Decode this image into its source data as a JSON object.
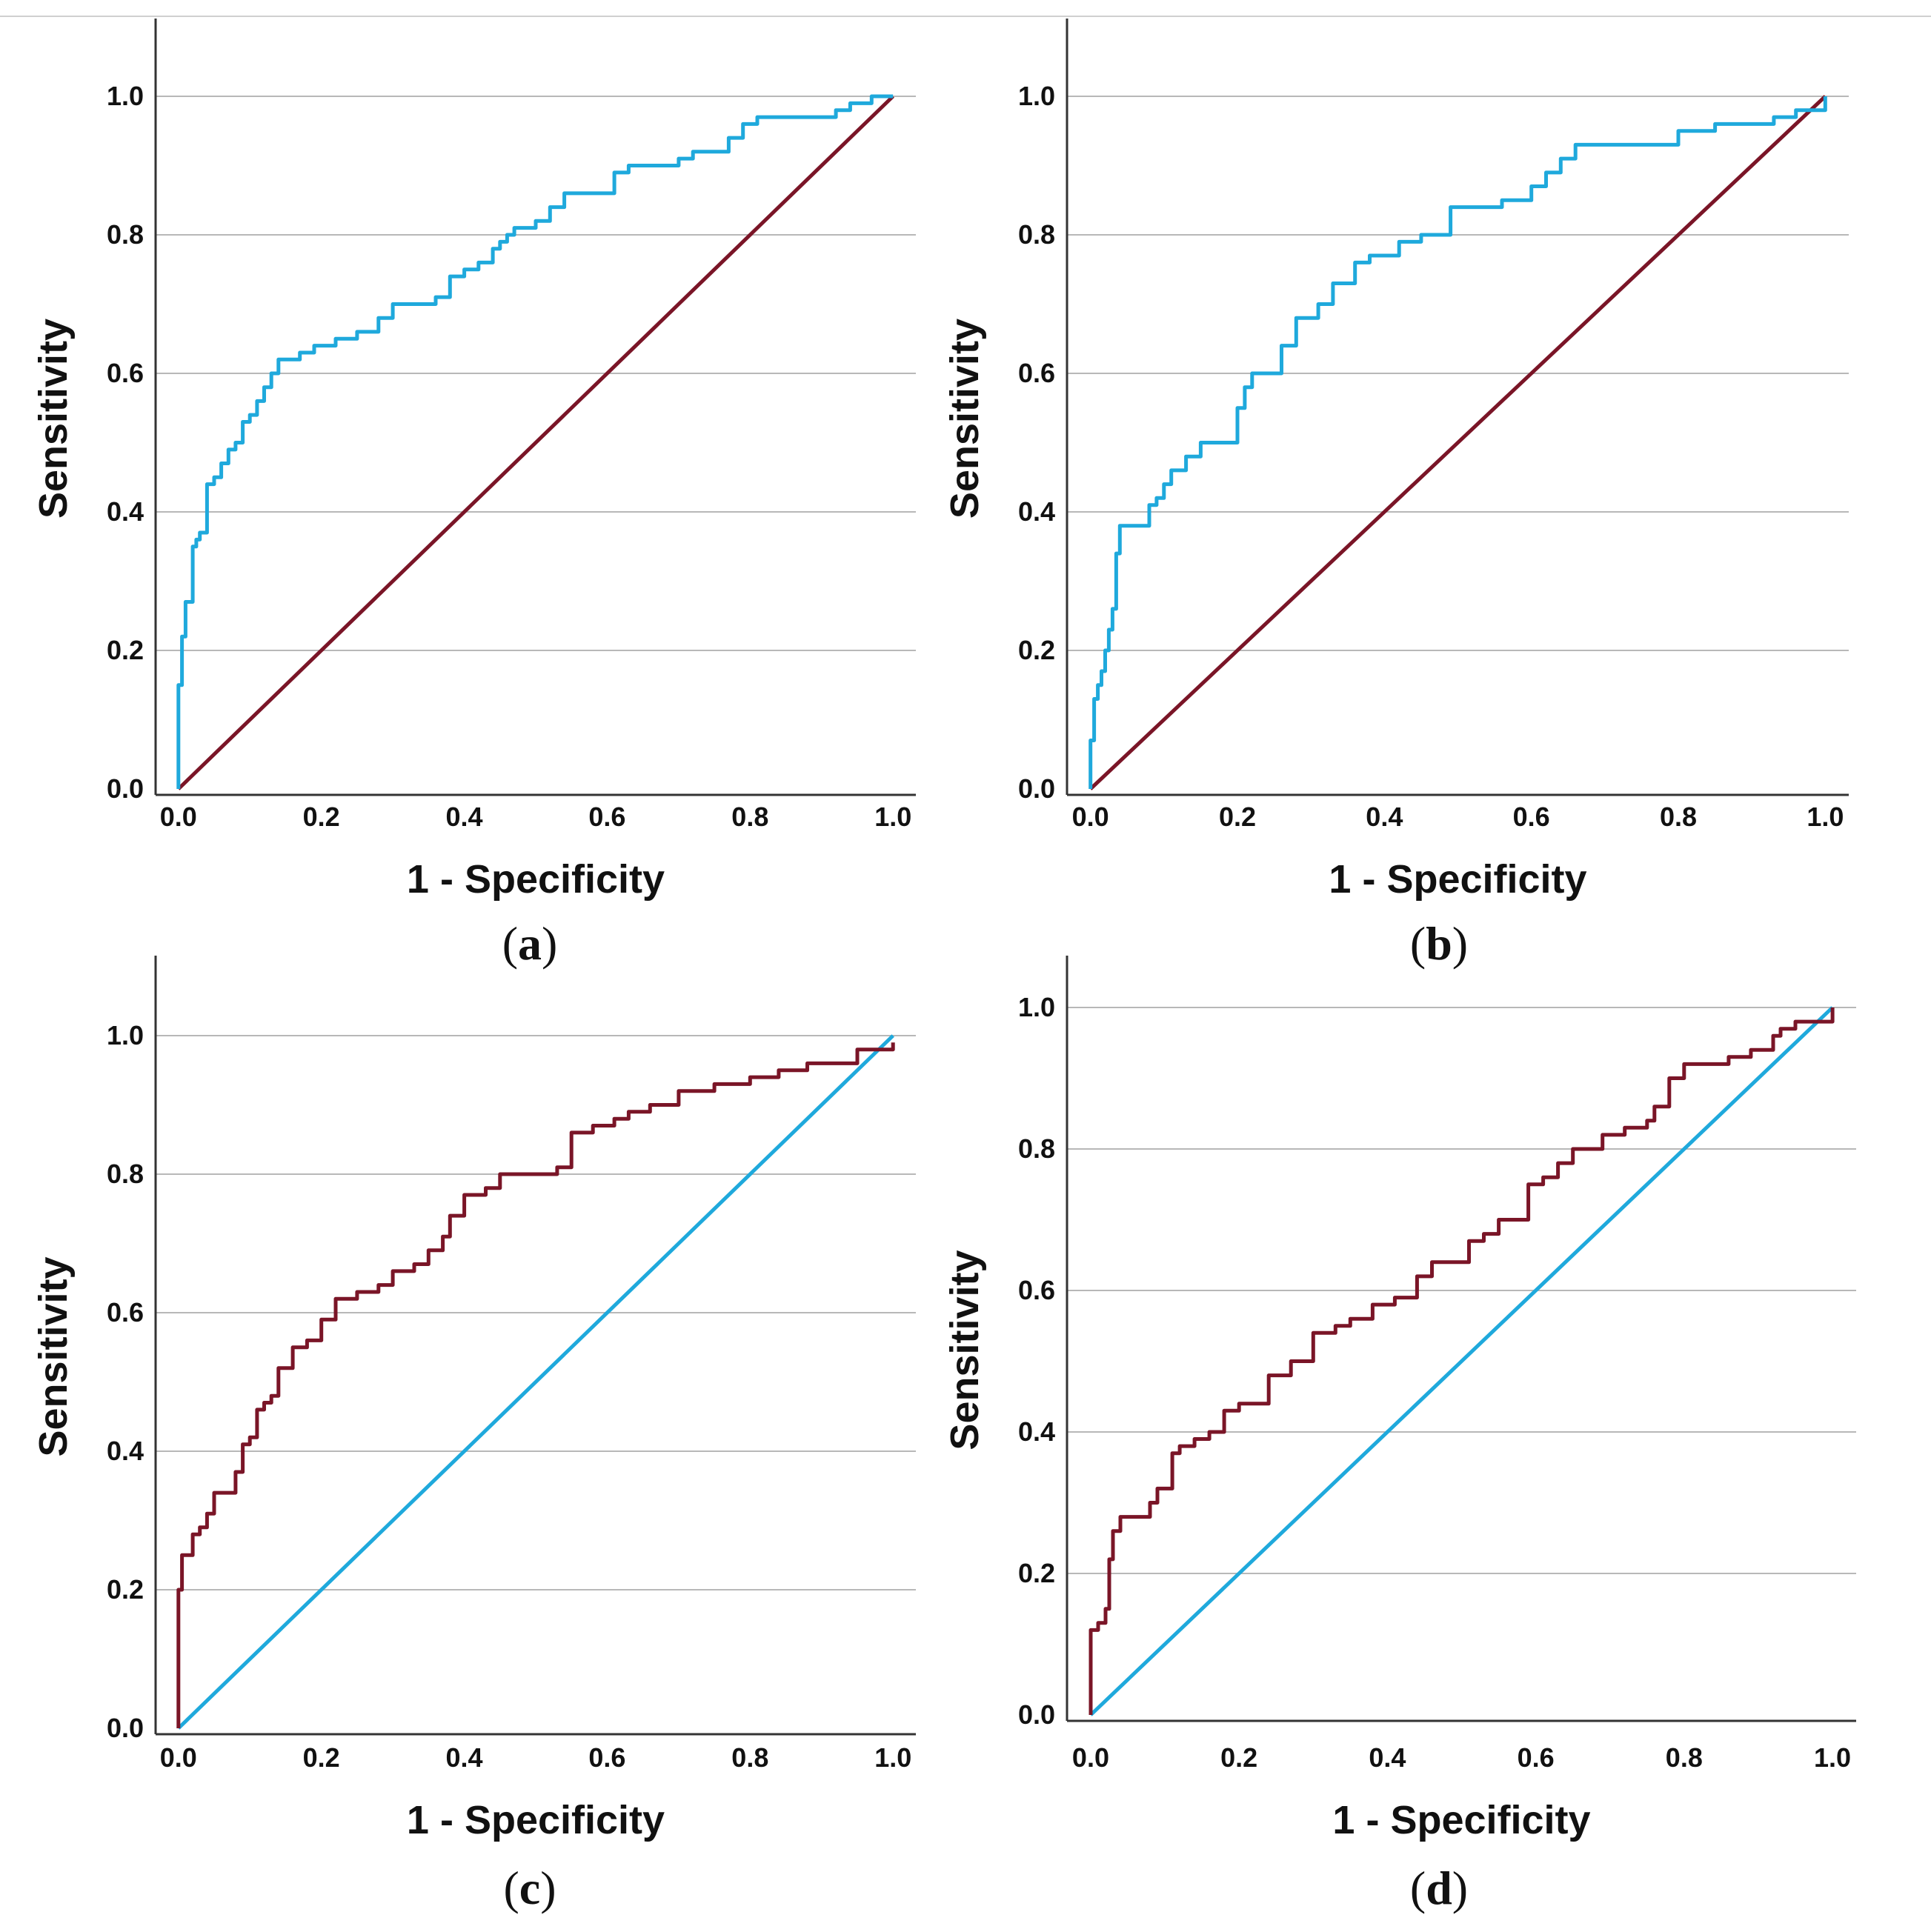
{
  "chart_data": [
    {
      "panel_label": "a",
      "type": "line",
      "xlabel": "1 - Specificity",
      "ylabel": "Sensitivity",
      "xlim": [
        0,
        1
      ],
      "ylim": [
        0,
        1.1
      ],
      "x_ticks": [
        0.0,
        0.2,
        0.4,
        0.6,
        0.8,
        1.0
      ],
      "y_ticks": [
        0.0,
        0.2,
        0.4,
        0.6,
        0.8,
        1.0
      ],
      "x_tick_labels": [
        "0.0",
        "0.2",
        "0.4",
        "0.6",
        "0.8",
        "1.0"
      ],
      "y_tick_labels": [
        "0.0",
        "0.2",
        "0.4",
        "0.6",
        "0.8",
        "1.0"
      ],
      "grid": "horizontal",
      "series": [
        {
          "role": "roc-curve",
          "color": "#1fa9dc",
          "x": [
            0.0,
            0.0,
            0.005,
            0.005,
            0.01,
            0.01,
            0.02,
            0.02,
            0.025,
            0.03,
            0.04,
            0.04,
            0.05,
            0.06,
            0.07,
            0.08,
            0.09,
            0.1,
            0.11,
            0.12,
            0.13,
            0.14,
            0.15,
            0.17,
            0.19,
            0.22,
            0.25,
            0.28,
            0.3,
            0.36,
            0.38,
            0.4,
            0.42,
            0.44,
            0.45,
            0.46,
            0.47,
            0.5,
            0.52,
            0.54,
            0.6,
            0.61,
            0.63,
            0.66,
            0.7,
            0.72,
            0.76,
            0.77,
            0.79,
            0.81,
            0.85,
            0.91,
            0.92,
            0.94,
            0.97,
            1.0
          ],
          "y": [
            0.0,
            0.15,
            0.15,
            0.22,
            0.23,
            0.27,
            0.33,
            0.35,
            0.36,
            0.37,
            0.38,
            0.44,
            0.45,
            0.47,
            0.49,
            0.5,
            0.53,
            0.54,
            0.56,
            0.58,
            0.6,
            0.62,
            0.62,
            0.63,
            0.64,
            0.65,
            0.66,
            0.68,
            0.7,
            0.71,
            0.74,
            0.75,
            0.76,
            0.78,
            0.79,
            0.8,
            0.81,
            0.82,
            0.84,
            0.86,
            0.86,
            0.89,
            0.9,
            0.9,
            0.91,
            0.92,
            0.92,
            0.94,
            0.96,
            0.97,
            0.97,
            0.97,
            0.98,
            0.99,
            1.0,
            1.0
          ]
        },
        {
          "role": "reference-line",
          "color": "#7a1527",
          "x": [
            0.0,
            1.0
          ],
          "y": [
            0.0,
            1.0
          ]
        }
      ]
    },
    {
      "panel_label": "b",
      "type": "line",
      "xlabel": "1 - Specificity",
      "ylabel": "Sensitivity",
      "xlim": [
        0,
        1
      ],
      "ylim": [
        0,
        1.1
      ],
      "x_ticks": [
        0.0,
        0.2,
        0.4,
        0.6,
        0.8,
        1.0
      ],
      "y_ticks": [
        0.0,
        0.2,
        0.4,
        0.6,
        0.8,
        1.0
      ],
      "x_tick_labels": [
        "0.0",
        "0.2",
        "0.4",
        "0.6",
        "0.8",
        "1.0"
      ],
      "y_tick_labels": [
        "0.0",
        "0.2",
        "0.4",
        "0.6",
        "0.8",
        "1.0"
      ],
      "grid": "horizontal",
      "series": [
        {
          "role": "roc-curve",
          "color": "#1fa9dc",
          "x": [
            0.0,
            0.0,
            0.005,
            0.005,
            0.01,
            0.015,
            0.02,
            0.025,
            0.03,
            0.035,
            0.04,
            0.045,
            0.05,
            0.08,
            0.09,
            0.1,
            0.11,
            0.13,
            0.15,
            0.17,
            0.2,
            0.21,
            0.22,
            0.23,
            0.26,
            0.28,
            0.29,
            0.31,
            0.33,
            0.36,
            0.38,
            0.42,
            0.45,
            0.49,
            0.51,
            0.56,
            0.6,
            0.62,
            0.64,
            0.66,
            0.75,
            0.8,
            0.85,
            0.93,
            0.96,
            1.0
          ],
          "y": [
            0.0,
            0.07,
            0.07,
            0.13,
            0.15,
            0.17,
            0.2,
            0.23,
            0.26,
            0.34,
            0.38,
            0.38,
            0.38,
            0.41,
            0.42,
            0.44,
            0.46,
            0.48,
            0.5,
            0.5,
            0.55,
            0.58,
            0.6,
            0.6,
            0.64,
            0.68,
            0.68,
            0.7,
            0.73,
            0.76,
            0.77,
            0.79,
            0.8,
            0.84,
            0.84,
            0.85,
            0.87,
            0.89,
            0.91,
            0.93,
            0.93,
            0.95,
            0.96,
            0.97,
            0.98,
            1.0
          ]
        },
        {
          "role": "reference-line",
          "color": "#7a1527",
          "x": [
            0.0,
            1.0
          ],
          "y": [
            0.0,
            1.0
          ]
        }
      ]
    },
    {
      "panel_label": "c",
      "type": "line",
      "xlabel": "1 - Specificity",
      "ylabel": "Sensitivity",
      "xlim": [
        0,
        1
      ],
      "ylim": [
        0,
        1.1
      ],
      "x_ticks": [
        0.0,
        0.2,
        0.4,
        0.6,
        0.8,
        1.0
      ],
      "y_ticks": [
        0.0,
        0.2,
        0.4,
        0.6,
        0.8,
        1.0
      ],
      "x_tick_labels": [
        "0.0",
        "0.2",
        "0.4",
        "0.6",
        "0.8",
        "1.0"
      ],
      "y_tick_labels": [
        "0.0",
        "0.2",
        "0.4",
        "0.6",
        "0.8",
        "1.0"
      ],
      "grid": "horizontal",
      "series": [
        {
          "role": "roc-curve",
          "color": "#7a1527",
          "x": [
            0.0,
            0.0,
            0.005,
            0.01,
            0.02,
            0.03,
            0.04,
            0.05,
            0.07,
            0.08,
            0.09,
            0.1,
            0.11,
            0.12,
            0.13,
            0.14,
            0.16,
            0.18,
            0.2,
            0.22,
            0.25,
            0.28,
            0.3,
            0.33,
            0.35,
            0.37,
            0.38,
            0.4,
            0.43,
            0.45,
            0.5,
            0.53,
            0.55,
            0.58,
            0.61,
            0.63,
            0.66,
            0.7,
            0.75,
            0.8,
            0.84,
            0.88,
            0.95,
            1.0
          ],
          "y": [
            0.0,
            0.2,
            0.25,
            0.25,
            0.28,
            0.29,
            0.31,
            0.34,
            0.34,
            0.37,
            0.41,
            0.42,
            0.46,
            0.47,
            0.48,
            0.52,
            0.55,
            0.56,
            0.59,
            0.62,
            0.63,
            0.64,
            0.66,
            0.67,
            0.69,
            0.71,
            0.74,
            0.77,
            0.78,
            0.8,
            0.8,
            0.81,
            0.86,
            0.87,
            0.88,
            0.89,
            0.9,
            0.92,
            0.93,
            0.94,
            0.95,
            0.96,
            0.98,
            0.99
          ]
        },
        {
          "role": "reference-line",
          "color": "#1fa9dc",
          "x": [
            0.0,
            1.0
          ],
          "y": [
            0.0,
            1.0
          ]
        }
      ]
    },
    {
      "panel_label": "d",
      "type": "line",
      "xlabel": "1 - Specificity",
      "ylabel": "Sensitivity",
      "xlim": [
        0,
        1
      ],
      "ylim": [
        0,
        1.1
      ],
      "x_ticks": [
        0.0,
        0.2,
        0.4,
        0.6,
        0.8,
        1.0
      ],
      "y_ticks": [
        0.0,
        0.2,
        0.4,
        0.6,
        0.8,
        1.0
      ],
      "x_tick_labels": [
        "0.0",
        "0.2",
        "0.4",
        "0.6",
        "0.8",
        "1.0"
      ],
      "y_tick_labels": [
        "0.0",
        "0.2",
        "0.4",
        "0.6",
        "0.8",
        "1.0"
      ],
      "grid": "horizontal",
      "series": [
        {
          "role": "roc-curve",
          "color": "#7a1527",
          "x": [
            0.0,
            0.0,
            0.01,
            0.02,
            0.025,
            0.03,
            0.04,
            0.05,
            0.08,
            0.09,
            0.11,
            0.12,
            0.14,
            0.16,
            0.18,
            0.2,
            0.24,
            0.27,
            0.3,
            0.33,
            0.35,
            0.38,
            0.41,
            0.44,
            0.46,
            0.51,
            0.53,
            0.55,
            0.59,
            0.61,
            0.63,
            0.65,
            0.69,
            0.72,
            0.75,
            0.76,
            0.78,
            0.8,
            0.86,
            0.89,
            0.92,
            0.93,
            0.95,
            1.0
          ],
          "y": [
            0.0,
            0.12,
            0.13,
            0.15,
            0.22,
            0.26,
            0.28,
            0.28,
            0.3,
            0.32,
            0.37,
            0.38,
            0.39,
            0.4,
            0.43,
            0.44,
            0.48,
            0.5,
            0.54,
            0.55,
            0.56,
            0.58,
            0.59,
            0.62,
            0.64,
            0.67,
            0.68,
            0.7,
            0.75,
            0.76,
            0.78,
            0.8,
            0.82,
            0.83,
            0.84,
            0.86,
            0.9,
            0.92,
            0.93,
            0.94,
            0.96,
            0.97,
            0.98,
            1.0
          ]
        },
        {
          "role": "reference-line",
          "color": "#1fa9dc",
          "x": [
            0.0,
            1.0
          ],
          "y": [
            0.0,
            1.0
          ]
        }
      ]
    }
  ]
}
